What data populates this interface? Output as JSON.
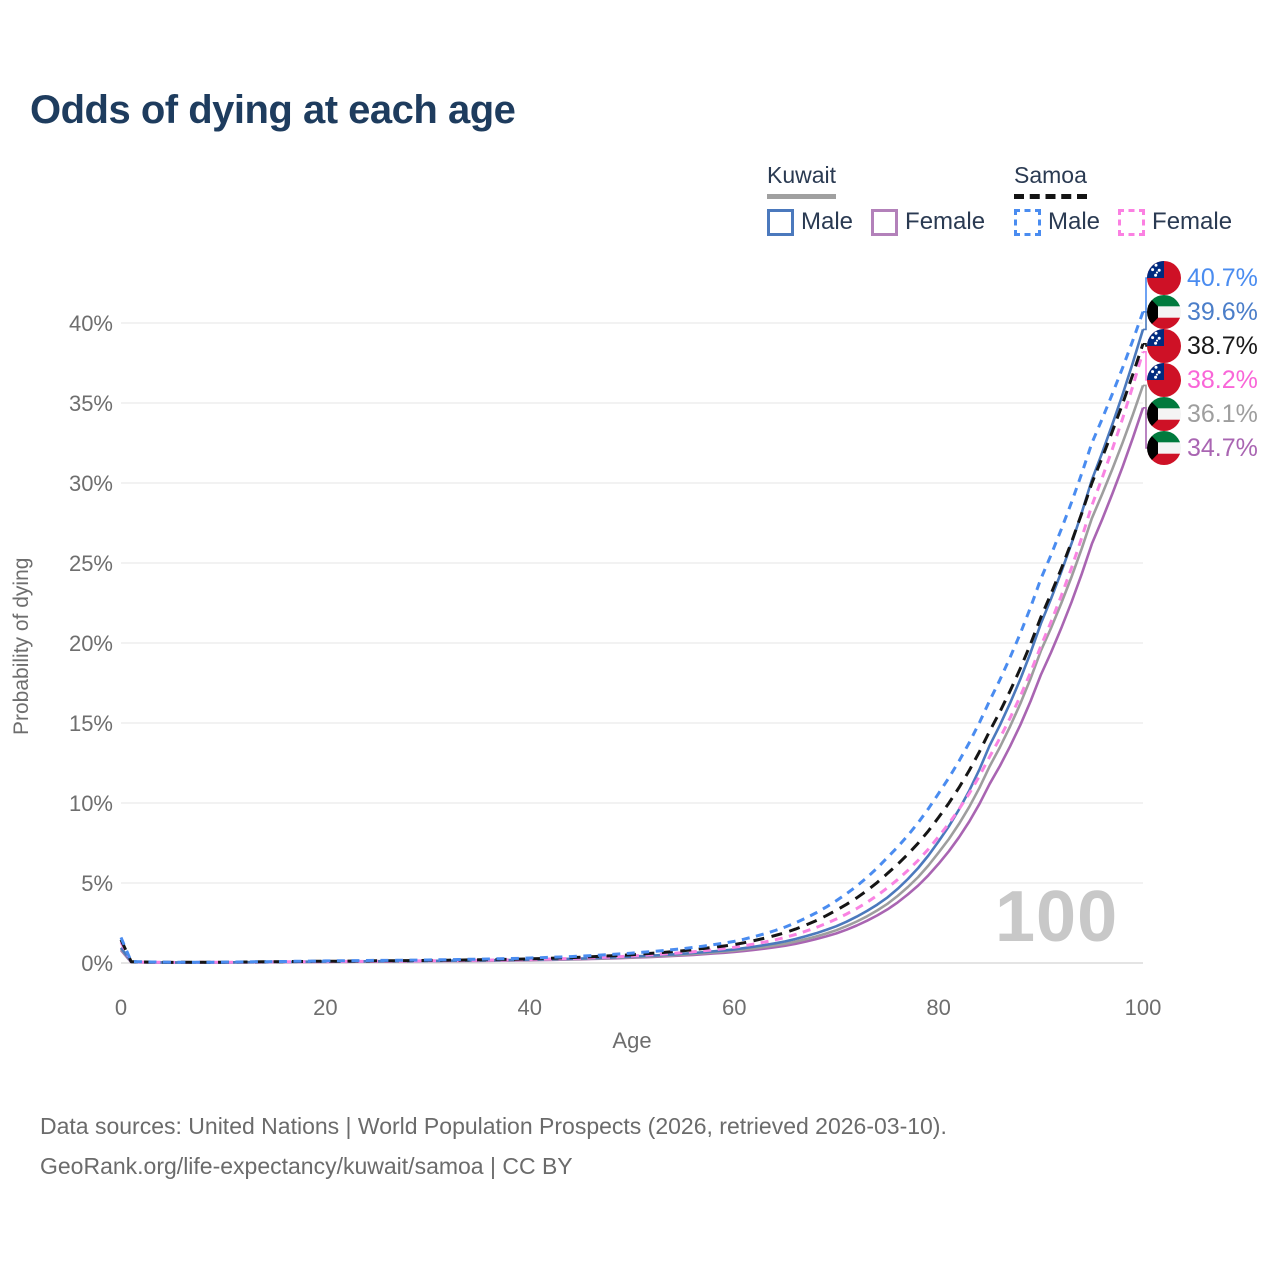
{
  "title": "Odds of dying at each age",
  "legend": {
    "groups": [
      {
        "label": "Kuwait",
        "underline_color": "#a0a0a0",
        "underline_style": "solid",
        "items": [
          {
            "label": "Male",
            "color": "#4b79bd",
            "dashed": false
          },
          {
            "label": "Female",
            "color": "#b381ba",
            "dashed": false
          }
        ]
      },
      {
        "label": "Samoa",
        "underline_color": "#141414",
        "underline_style": "dashed",
        "items": [
          {
            "label": "Male",
            "color": "#4a8cf0",
            "dashed": true
          },
          {
            "label": "Female",
            "color": "#fb80e2",
            "dashed": true
          }
        ]
      }
    ]
  },
  "chart_data": {
    "type": "line",
    "title": "Odds of dying at each age",
    "xlabel": "Age",
    "ylabel": "Probability of dying",
    "xlim": [
      0,
      100
    ],
    "ylim_percent": [
      0,
      40
    ],
    "grid": true,
    "watermark": "100",
    "x_ticks": [
      0,
      20,
      40,
      60,
      80,
      100
    ],
    "y_ticks": [
      {
        "value": 0,
        "label": "0%"
      },
      {
        "value": 5,
        "label": "5%"
      },
      {
        "value": 10,
        "label": "10%"
      },
      {
        "value": 15,
        "label": "15%"
      },
      {
        "value": 20,
        "label": "20%"
      },
      {
        "value": 25,
        "label": "25%"
      },
      {
        "value": 30,
        "label": "30%"
      },
      {
        "value": 35,
        "label": "35%"
      },
      {
        "value": 40,
        "label": "40%"
      }
    ],
    "ages": [
      0,
      1,
      5,
      10,
      15,
      20,
      25,
      30,
      35,
      40,
      45,
      50,
      55,
      60,
      65,
      70,
      75,
      80,
      85,
      90,
      95,
      100
    ],
    "series": [
      {
        "name": "Samoa Male",
        "country": "Samoa",
        "sex": "male",
        "flag": "samoa",
        "color": "#4a8cf0",
        "label_color": "#4a8cf0",
        "dash": "8 6.5",
        "end_label": "40.7%",
        "values_percent": [
          1.6,
          0.09,
          0.045,
          0.055,
          0.09,
          0.13,
          0.16,
          0.19,
          0.24,
          0.31,
          0.43,
          0.62,
          0.9,
          1.35,
          2.25,
          3.9,
          6.6,
          10.6,
          16.4,
          24.0,
          32.5,
          40.7
        ]
      },
      {
        "name": "Kuwait Male",
        "country": "Kuwait",
        "sex": "male",
        "flag": "kuwait",
        "color": "#4b79bd",
        "label_color": "#4b7ec9",
        "dash": null,
        "end_label": "39.6%",
        "values_percent": [
          0.95,
          0.06,
          0.03,
          0.04,
          0.065,
          0.09,
          0.11,
          0.13,
          0.16,
          0.21,
          0.28,
          0.4,
          0.58,
          0.85,
          1.35,
          2.3,
          4.1,
          7.6,
          13.6,
          21.2,
          30.2,
          39.6
        ]
      },
      {
        "name": "Samoa Both sexes",
        "country": "Samoa",
        "sex": "both",
        "flag": "samoa",
        "color": "#151515",
        "label_color": "#1a1a1a",
        "dash": "11 7.5",
        "end_label": "38.7%",
        "values_percent": [
          1.45,
          0.08,
          0.04,
          0.05,
          0.08,
          0.11,
          0.135,
          0.16,
          0.2,
          0.26,
          0.36,
          0.52,
          0.77,
          1.15,
          1.9,
          3.3,
          5.6,
          9.1,
          14.5,
          21.6,
          30.0,
          38.7
        ]
      },
      {
        "name": "Samoa Female",
        "country": "Samoa",
        "sex": "female",
        "flag": "samoa",
        "color": "#f983e2",
        "label_color": "#f966d8",
        "dash": "8 6.5",
        "end_label": "38.2%",
        "values_percent": [
          1.3,
          0.07,
          0.035,
          0.045,
          0.07,
          0.09,
          0.11,
          0.135,
          0.17,
          0.22,
          0.3,
          0.44,
          0.65,
          0.98,
          1.6,
          2.75,
          4.7,
          7.9,
          12.9,
          19.8,
          28.6,
          38.2
        ]
      },
      {
        "name": "Kuwait Both sexes",
        "country": "Kuwait",
        "sex": "both",
        "flag": "kuwait",
        "color": "#9e9e9e",
        "label_color": "#9e9e9e",
        "dash": null,
        "end_label": "36.1%",
        "values_percent": [
          0.88,
          0.055,
          0.027,
          0.036,
          0.055,
          0.08,
          0.1,
          0.12,
          0.145,
          0.19,
          0.25,
          0.36,
          0.52,
          0.77,
          1.2,
          2.05,
          3.7,
          6.9,
          12.3,
          19.5,
          27.8,
          36.1
        ]
      },
      {
        "name": "Kuwait Female",
        "country": "Kuwait",
        "sex": "female",
        "flag": "kuwait",
        "color": "#a965b2",
        "label_color": "#a965b2",
        "dash": null,
        "end_label": "34.7%",
        "values_percent": [
          0.8,
          0.05,
          0.024,
          0.032,
          0.05,
          0.07,
          0.09,
          0.11,
          0.13,
          0.17,
          0.23,
          0.33,
          0.47,
          0.69,
          1.08,
          1.85,
          3.35,
          6.2,
          11.2,
          18.0,
          26.2,
          34.7
        ]
      }
    ]
  },
  "footer": {
    "line1": "Data sources: United Nations | World Population Prospects (2026, retrieved 2026-03-10).",
    "line2": "GeoRank.org/life-expectancy/kuwait/samoa | CC BY"
  }
}
